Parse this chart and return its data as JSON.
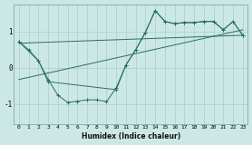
{
  "xlabel": "Humidex (Indice chaleur)",
  "bg_color": "#cce8e4",
  "line_color": "#2a6e60",
  "grid_color": "#aacfcb",
  "xlim": [
    -0.5,
    23.5
  ],
  "ylim": [
    -1.55,
    1.75
  ],
  "yticks": [
    -1,
    0,
    1
  ],
  "xticks": [
    0,
    1,
    2,
    3,
    4,
    5,
    6,
    7,
    8,
    9,
    10,
    11,
    12,
    13,
    14,
    15,
    16,
    17,
    18,
    19,
    20,
    21,
    22,
    23
  ],
  "series": [
    {
      "x": [
        0,
        1,
        2,
        3,
        4,
        5,
        6,
        7,
        8,
        9,
        10,
        11,
        12,
        13,
        14,
        15,
        16,
        17,
        18,
        19,
        20,
        21,
        22,
        23
      ],
      "y": [
        0.72,
        0.5,
        0.2,
        -0.32,
        -0.75,
        -0.95,
        -0.92,
        -0.88,
        -0.88,
        -0.93,
        -0.55,
        0.08,
        0.5,
        0.98,
        1.58,
        1.28,
        1.22,
        1.25,
        1.25,
        1.28,
        1.28,
        1.05,
        1.28,
        0.9
      ],
      "marker": true
    },
    {
      "x": [
        0,
        2,
        3,
        10,
        11,
        12,
        13,
        14,
        15,
        16,
        17,
        18,
        19,
        20,
        21,
        22,
        23
      ],
      "y": [
        0.72,
        0.2,
        -0.38,
        -0.6,
        0.08,
        0.5,
        0.98,
        1.58,
        1.28,
        1.22,
        1.25,
        1.25,
        1.28,
        1.28,
        1.05,
        1.28,
        0.9
      ],
      "marker": true
    },
    {
      "x": [
        0,
        23
      ],
      "y": [
        0.68,
        0.9
      ],
      "marker": false
    },
    {
      "x": [
        0,
        23
      ],
      "y": [
        -0.32,
        1.05
      ],
      "marker": false
    }
  ]
}
